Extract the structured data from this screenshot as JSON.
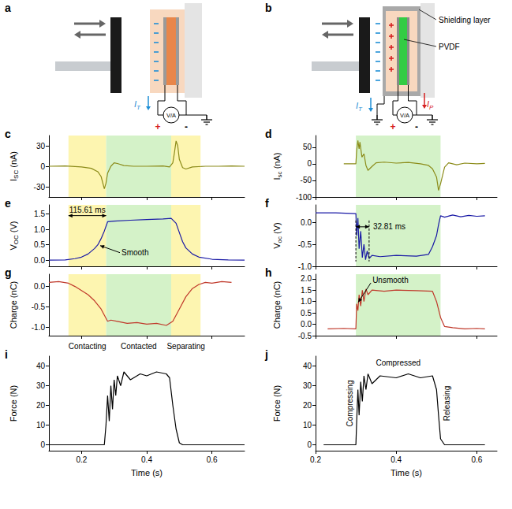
{
  "diagrams": [
    {
      "panel": "a",
      "meter": "V/A",
      "meter_plus": "+",
      "meter_minus": "-",
      "currents": [
        {
          "symbol": "I",
          "sub": "T",
          "color": "#1f8fd6"
        }
      ]
    },
    {
      "panel": "b",
      "meter": "V/A",
      "meter_plus": "+",
      "meter_minus": "-",
      "currents": [
        {
          "symbol": "I",
          "sub": "T",
          "color": "#1f8fd6"
        },
        {
          "symbol": "I",
          "sub": "P",
          "color": "#d62020"
        }
      ],
      "labels": [
        "Shielding layer",
        "PVDF"
      ]
    }
  ],
  "phases_left": [
    {
      "label": "Contacting",
      "start": 0.16,
      "end": 0.2756,
      "color": "#fdf5b0"
    },
    {
      "label": "Contacted",
      "start": 0.2756,
      "end": 0.475,
      "color": "#d4f2c8"
    },
    {
      "label": "Separating",
      "start": 0.475,
      "end": 0.565,
      "color": "#fdf5b0"
    }
  ],
  "phases_right": [
    {
      "label": "Compressing",
      "start": 0.27,
      "end": 0.3
    },
    {
      "label": "Compressed",
      "start": 0.3,
      "end": 0.51,
      "color": "#d4f2c8"
    },
    {
      "label": "Releasing",
      "start": 0.51,
      "end": 0.54
    }
  ],
  "chart_data": [
    {
      "panel": "c",
      "type": "line",
      "ylabel": [
        "I",
        "SC",
        " (nA)"
      ],
      "color": "#8c8c1a",
      "grid": false,
      "tick_labels": "y",
      "xlim": [
        0.1,
        0.7
      ],
      "xticks": [
        0.2,
        0.4,
        0.6
      ],
      "ylim": [
        -45,
        45
      ],
      "yticks": [
        -30,
        0,
        30
      ],
      "x": [
        0.1,
        0.15,
        0.2,
        0.23,
        0.25,
        0.26,
        0.27,
        0.275,
        0.28,
        0.29,
        0.3,
        0.31,
        0.33,
        0.36,
        0.4,
        0.45,
        0.47,
        0.48,
        0.485,
        0.49,
        0.495,
        0.5,
        0.51,
        0.52,
        0.54,
        0.58,
        0.62,
        0.66,
        0.7
      ],
      "values": [
        0,
        0.5,
        -1,
        -3,
        -8,
        -15,
        -33,
        -25,
        -10,
        0,
        5,
        4,
        1,
        0,
        0,
        0.5,
        -1,
        5,
        20,
        37,
        30,
        10,
        -2,
        -4,
        -1,
        0,
        0,
        0.5,
        0
      ]
    },
    {
      "panel": "d",
      "type": "line",
      "ylabel": [
        "I",
        "sc",
        " (nA)"
      ],
      "color": "#8c8c1a",
      "grid": false,
      "tick_labels": "y",
      "xlim": [
        0.2,
        0.65
      ],
      "xticks": [
        0.2,
        0.4,
        0.6
      ],
      "ylim": [
        -100,
        85
      ],
      "yticks": [
        -100,
        -50,
        0,
        50
      ],
      "x": [
        0.27,
        0.3,
        0.302,
        0.305,
        0.308,
        0.31,
        0.315,
        0.32,
        0.325,
        0.33,
        0.34,
        0.35,
        0.37,
        0.4,
        0.43,
        0.46,
        0.48,
        0.49,
        0.5,
        0.505,
        0.51,
        0.52,
        0.53,
        0.55,
        0.57,
        0.6,
        0.62
      ],
      "values": [
        0,
        0,
        40,
        70,
        45,
        65,
        20,
        30,
        -5,
        -20,
        -8,
        3,
        5,
        2,
        4,
        0,
        -5,
        -15,
        -40,
        -80,
        -60,
        -10,
        3,
        -3,
        2,
        0,
        1
      ]
    },
    {
      "panel": "e",
      "type": "line",
      "ylabel": [
        "V",
        "OC",
        " (V)"
      ],
      "color": "#1a1aa6",
      "grid": false,
      "tick_labels": "y",
      "xlim": [
        0.1,
        0.7
      ],
      "xticks": [
        0.2,
        0.4,
        0.6
      ],
      "ylim": [
        -0.2,
        1.8
      ],
      "yticks": [
        {
          "value": 0,
          "label": "0.0"
        },
        0.5,
        {
          "value": 1,
          "label": "1.0"
        },
        1.5
      ],
      "x": [
        0.1,
        0.15,
        0.18,
        0.2,
        0.22,
        0.24,
        0.25,
        0.26,
        0.27,
        0.28,
        0.3,
        0.35,
        0.4,
        0.45,
        0.475,
        0.49,
        0.5,
        0.51,
        0.52,
        0.54,
        0.56,
        0.6,
        0.65,
        0.7
      ],
      "values": [
        0,
        0.01,
        0.05,
        0.1,
        0.2,
        0.38,
        0.5,
        0.7,
        0.95,
        1.25,
        1.27,
        1.3,
        1.32,
        1.34,
        1.36,
        1.2,
        0.9,
        0.6,
        0.4,
        0.2,
        0.1,
        0.03,
        0.01,
        0
      ],
      "annotations": [
        {
          "text": "115.61 ms",
          "x_start": 0.16,
          "x_end": 0.2756,
          "y": 1.45
        },
        {
          "text": "Smooth",
          "x": 0.25,
          "y": 0.5
        }
      ]
    },
    {
      "panel": "f",
      "type": "line",
      "ylabel": [
        "V",
        "oc",
        " (V)"
      ],
      "color": "#1a1aa6",
      "grid": false,
      "tick_labels": "y",
      "xlim": [
        0.2,
        0.65
      ],
      "xticks": [
        0.2,
        0.4,
        0.6
      ],
      "ylim": [
        -1.0,
        0.4
      ],
      "yticks": [
        {
          "value": -1,
          "label": "-1.0"
        },
        -0.5,
        {
          "value": 0,
          "label": "0.0"
        }
      ],
      "x": [
        0.2,
        0.25,
        0.3,
        0.302,
        0.305,
        0.308,
        0.312,
        0.316,
        0.32,
        0.324,
        0.328,
        0.333,
        0.34,
        0.36,
        0.4,
        0.45,
        0.48,
        0.49,
        0.5,
        0.505,
        0.51,
        0.52,
        0.54,
        0.56,
        0.58,
        0.6,
        0.62
      ],
      "values": [
        0.22,
        0.22,
        0.2,
        -0.3,
        0.1,
        -0.6,
        -0.2,
        -0.8,
        -0.5,
        -0.85,
        -0.65,
        -0.82,
        -0.75,
        -0.78,
        -0.75,
        -0.77,
        -0.73,
        -0.55,
        -0.3,
        -0.05,
        0.15,
        0.12,
        0.17,
        0.13,
        0.16,
        0.14,
        0.15
      ],
      "annotations": [
        {
          "text": "32.81 ms",
          "x_start": 0.3,
          "x_end": 0.3328,
          "y": -0.1,
          "line_style": "dashed"
        }
      ]
    },
    {
      "panel": "g",
      "type": "line",
      "ylabel": [
        "Charge (nC)"
      ],
      "color": "#c0392b",
      "grid": false,
      "tick_labels": "y",
      "xlim": [
        0.1,
        0.7
      ],
      "xticks": [
        0.2,
        0.4,
        0.6
      ],
      "ylim": [
        -1.2,
        0.3
      ],
      "yticks": [
        {
          "value": -1,
          "label": "-1.0"
        },
        -0.5,
        {
          "value": 0,
          "label": "0.0"
        }
      ],
      "x": [
        0.1,
        0.13,
        0.16,
        0.18,
        0.2,
        0.22,
        0.24,
        0.26,
        0.27,
        0.28,
        0.29,
        0.31,
        0.34,
        0.37,
        0.4,
        0.43,
        0.46,
        0.48,
        0.5,
        0.52,
        0.54,
        0.56,
        0.58,
        0.6,
        0.63,
        0.66
      ],
      "values": [
        0.1,
        0.12,
        0.08,
        0,
        -0.1,
        -0.2,
        -0.35,
        -0.55,
        -0.7,
        -0.85,
        -0.82,
        -0.85,
        -0.9,
        -0.88,
        -0.92,
        -0.9,
        -0.95,
        -0.85,
        -0.55,
        -0.25,
        -0.05,
        0.05,
        0.1,
        0.08,
        0.12,
        0.1
      ]
    },
    {
      "panel": "h",
      "type": "line",
      "ylabel": [
        "Charge (nC)"
      ],
      "color": "#c0392b",
      "grid": false,
      "tick_labels": "y",
      "xlim": [
        0.2,
        0.65
      ],
      "xticks": [
        0.2,
        0.4,
        0.6
      ],
      "ylim": [
        -0.5,
        2.2
      ],
      "yticks": [
        -0.5,
        {
          "value": 0,
          "label": "0.0"
        },
        0.5,
        {
          "value": 1,
          "label": "1.0"
        },
        1.5,
        {
          "value": 2,
          "label": "2.0"
        }
      ],
      "x": [
        0.23,
        0.27,
        0.3,
        0.302,
        0.305,
        0.308,
        0.312,
        0.316,
        0.32,
        0.325,
        0.33,
        0.34,
        0.37,
        0.4,
        0.45,
        0.49,
        0.5,
        0.51,
        0.52,
        0.54,
        0.57,
        0.6,
        0.62
      ],
      "values": [
        -0.2,
        -0.18,
        -0.2,
        0.9,
        0.6,
        1.3,
        0.8,
        1.5,
        1.0,
        1.55,
        1.3,
        1.5,
        1.45,
        1.5,
        1.48,
        1.45,
        1.0,
        0.3,
        -0.1,
        -0.15,
        -0.2,
        -0.18,
        -0.2
      ],
      "annotations": [
        {
          "text": "Unsmooth",
          "x": 0.302,
          "y": 0.9
        }
      ]
    },
    {
      "panel": "i",
      "type": "line",
      "ylabel": [
        "Force (N)"
      ],
      "xlabel": "Time (s)",
      "color": "#000000",
      "grid": false,
      "xlim": [
        0.1,
        0.7
      ],
      "xticks": [
        0.2,
        0.4,
        0.6
      ],
      "ylim": [
        -3,
        45
      ],
      "yticks": [
        0,
        10,
        20,
        30,
        40
      ],
      "x": [
        0.1,
        0.27,
        0.275,
        0.28,
        0.285,
        0.29,
        0.295,
        0.3,
        0.305,
        0.31,
        0.32,
        0.33,
        0.35,
        0.38,
        0.4,
        0.43,
        0.46,
        0.47,
        0.48,
        0.49,
        0.5,
        0.51,
        0.7
      ],
      "values": [
        0,
        0,
        10,
        25,
        12,
        30,
        18,
        33,
        25,
        35,
        30,
        37,
        33,
        36,
        35,
        37,
        36,
        34,
        20,
        8,
        1,
        0,
        0
      ]
    },
    {
      "panel": "j",
      "type": "line",
      "ylabel": [
        "Force (N)"
      ],
      "xlabel": "Time (s)",
      "color": "#000000",
      "grid": false,
      "xlim": [
        0.2,
        0.65
      ],
      "xticks": [
        0.2,
        0.4,
        0.6
      ],
      "ylim": [
        -3,
        45
      ],
      "yticks": [
        0,
        10,
        20,
        30,
        40
      ],
      "x": [
        0.22,
        0.3,
        0.302,
        0.305,
        0.308,
        0.312,
        0.316,
        0.32,
        0.325,
        0.33,
        0.34,
        0.36,
        0.4,
        0.43,
        0.46,
        0.49,
        0.5,
        0.505,
        0.51,
        0.52,
        0.62
      ],
      "values": [
        0,
        0,
        12,
        28,
        15,
        32,
        22,
        35,
        28,
        36,
        31,
        35,
        34,
        36,
        34,
        35,
        28,
        15,
        3,
        0,
        0
      ]
    }
  ]
}
